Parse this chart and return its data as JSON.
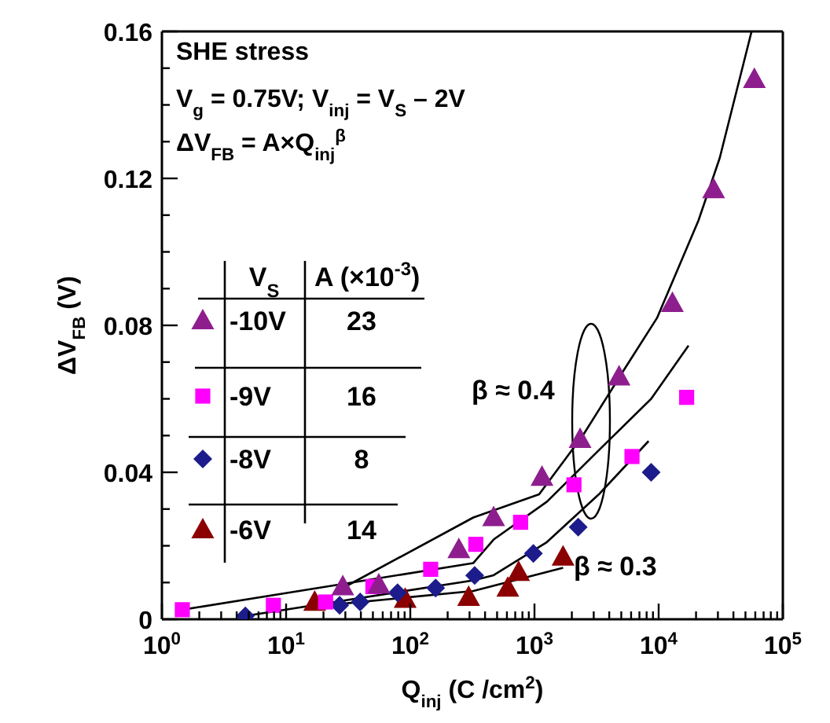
{
  "chart_data": {
    "type": "scatter",
    "xlabel": "Q$_{inj}$ (C /cm$^{2}$)",
    "ylabel": "ΔV$_{FB}$ (V)",
    "log": "x",
    "legend": "left",
    "legend_title": "V$_{S}$",
    "xlim": [
      1,
      100000
    ],
    "ylim": [
      0,
      0.16
    ],
    "xticks": [
      {
        "value": 1,
        "label": "10$^{0}$"
      },
      {
        "value": 2,
        "label": null
      },
      {
        "value": 3,
        "label": null
      },
      {
        "value": 4,
        "label": null
      },
      {
        "value": 5,
        "label": null
      },
      {
        "value": 6,
        "label": null
      },
      {
        "value": 7,
        "label": null
      },
      {
        "value": 8,
        "label": null
      },
      {
        "value": 9,
        "label": null
      },
      {
        "value": 10,
        "label": "10$^{1}$"
      },
      {
        "value": 20,
        "label": null
      },
      {
        "value": 30,
        "label": null
      },
      {
        "value": 40,
        "label": null
      },
      {
        "value": 50,
        "label": null
      },
      {
        "value": 60,
        "label": null
      },
      {
        "value": 70,
        "label": null
      },
      {
        "value": 80,
        "label": null
      },
      {
        "value": 90,
        "label": null
      },
      {
        "value": 100,
        "label": "10$^{2}$"
      },
      {
        "value": 200,
        "label": null
      },
      {
        "value": 300,
        "label": null
      },
      {
        "value": 400,
        "label": null
      },
      {
        "value": 500,
        "label": null
      },
      {
        "value": 600,
        "label": null
      },
      {
        "value": 700,
        "label": null
      },
      {
        "value": 800,
        "label": null
      },
      {
        "value": 900,
        "label": null
      },
      {
        "value": 1000,
        "label": "10$^{3}$"
      },
      {
        "value": 2000,
        "label": null
      },
      {
        "value": 3000,
        "label": null
      },
      {
        "value": 4000,
        "label": null
      },
      {
        "value": 5000,
        "label": null
      },
      {
        "value": 6000,
        "label": null
      },
      {
        "value": 7000,
        "label": null
      },
      {
        "value": 8000,
        "label": null
      },
      {
        "value": 9000,
        "label": null
      },
      {
        "value": 10000,
        "label": "10$^{4}$"
      },
      {
        "value": 20000,
        "label": null
      },
      {
        "value": 30000,
        "label": null
      },
      {
        "value": 40000,
        "label": null
      },
      {
        "value": 50000,
        "label": null
      },
      {
        "value": 60000,
        "label": null
      },
      {
        "value": 70000,
        "label": null
      },
      {
        "value": 80000,
        "label": null
      },
      {
        "value": 90000,
        "label": null
      },
      {
        "value": 100000,
        "label": "10$^{5}$"
      }
    ],
    "yticks": [
      0,
      {
        "value": 0.01,
        "label": null
      },
      {
        "value": 0.02,
        "label": null
      },
      {
        "value": 0.03,
        "label": null
      },
      0.04,
      {
        "value": 0.05,
        "label": null
      },
      {
        "value": 0.06,
        "label": null
      },
      {
        "value": 0.07,
        "label": null
      },
      0.08,
      {
        "value": 0.09,
        "label": null
      },
      {
        "value": 0.1,
        "label": null
      },
      {
        "value": 0.11,
        "label": null
      },
      0.12,
      {
        "value": 0.13,
        "label": null
      },
      {
        "value": 0.14,
        "label": null
      },
      {
        "value": 0.15,
        "label": null
      },
      0.16
    ],
    "annotations": [
      "SHE stress",
      "V$_{g}$ = 0.75V; V$_{inj}$ = V$_{S}$ – 2V",
      "ΔV$_{FB}$ = A×Q$_{inj}$$^{β}$",
      "β ≈ 0.4",
      "β ≈ 0.3",
      "A (×10$^{-3}$)",
      "23",
      "16",
      "8",
      "14"
    ],
    "series": [
      {
        "name": "-10V",
        "marker": "triangle",
        "color": "#8e1e8e",
        "x": [
          28.6,
          55.8,
          246,
          469,
          1150,
          2330,
          4800,
          12900,
          27700,
          59000
        ],
        "values": [
          0.0089,
          0.0094,
          0.019,
          0.0277,
          0.0387,
          0.049,
          0.066,
          0.086,
          0.117,
          0.147
        ]
      },
      {
        "name": "-9V",
        "marker": "square",
        "color": "#ff00ff",
        "x": [
          1.46,
          7.9,
          20.8,
          50,
          146,
          337,
          773,
          2080,
          6100,
          16800
        ],
        "values": [
          0.0026,
          0.0038,
          0.0047,
          0.0089,
          0.0136,
          0.0204,
          0.0264,
          0.0366,
          0.0443,
          0.0604
        ]
      },
      {
        "name": "-8V",
        "marker": "diamond",
        "color": "#1c1c8c",
        "x": [
          4.7,
          27,
          39.5,
          79,
          160,
          330,
          980,
          2250,
          8700
        ],
        "values": [
          0.0009,
          0.0038,
          0.0047,
          0.0072,
          0.0085,
          0.0119,
          0.0179,
          0.0251,
          0.04
        ]
      },
      {
        "name": "-6V",
        "marker": "triangle",
        "color": "#8b0000",
        "x": [
          17,
          91,
          295,
          610,
          745,
          1700
        ],
        "values": [
          0.0047,
          0.0055,
          0.006,
          0.0085,
          0.0128,
          0.017
        ]
      },
      {
        "type": "line",
        "marker": "none",
        "color": "#000000",
        "x": [
          28.6,
          322,
          1090,
          2450,
          5400,
          9700,
          20900,
          31000,
          56000
        ],
        "values": [
          0.0085,
          0.0277,
          0.034,
          0.05,
          0.0685,
          0.082,
          0.1085,
          0.1255,
          0.16
        ]
      },
      {
        "type": "line",
        "marker": "none",
        "color": "#000000",
        "x": [
          1.46,
          322,
          469,
          1260,
          3300,
          8700,
          17400
        ],
        "values": [
          0.0026,
          0.0153,
          0.0217,
          0.032,
          0.046,
          0.06,
          0.0745
        ]
      },
      {
        "type": "line",
        "marker": "none",
        "color": "#000000",
        "x": [
          4.7,
          322,
          469,
          1260,
          3300,
          8300
        ],
        "values": [
          0.0009,
          0.0106,
          0.012,
          0.021,
          0.034,
          0.0485
        ]
      },
      {
        "type": "line",
        "marker": "none",
        "color": "#000000",
        "x": [
          15.9,
          322,
          1700
        ],
        "values": [
          0.0034,
          0.0077,
          0.014
        ]
      }
    ]
  }
}
